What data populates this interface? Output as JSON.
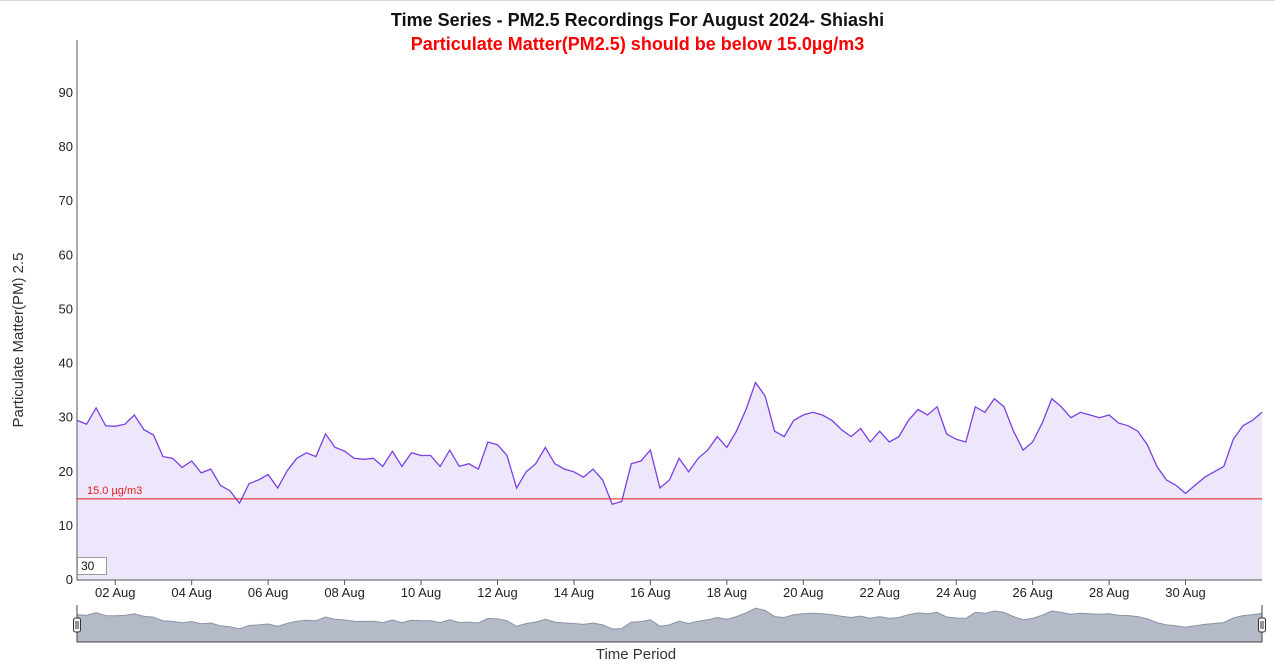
{
  "title": "Time Series - PM2.5 Recordings For August 2024- Shiashi",
  "subtitle": "Particulate Matter(PM2.5) should be below 15.0µg/m3",
  "smoothing_value": "30",
  "colors": {
    "line": "#7b3fe4",
    "area": "#eee6fb",
    "threshold": "#e31a1c",
    "brush_fill": "#b4bac8",
    "brush_stroke": "#8a93a5"
  },
  "chart_data": {
    "type": "area",
    "ylabel": "Particulate Matter(PM) 2.5",
    "xlabel": "Time Period",
    "ylim": [
      0,
      100
    ],
    "yticks": [
      0,
      10,
      20,
      30,
      40,
      50,
      60,
      70,
      80,
      90
    ],
    "xlim": [
      "2024-08-01",
      "2024-09-01"
    ],
    "xticks": [
      "02 Aug",
      "04 Aug",
      "06 Aug",
      "08 Aug",
      "10 Aug",
      "12 Aug",
      "14 Aug",
      "16 Aug",
      "18 Aug",
      "20 Aug",
      "22 Aug",
      "24 Aug",
      "26 Aug",
      "28 Aug",
      "30 Aug"
    ],
    "threshold": {
      "value": 15.0,
      "label": "15.0 µg/m3"
    },
    "series": [
      {
        "x": [
          "2024-08-01T00:00",
          "2024-08-01T06:00",
          "2024-08-01T12:00",
          "2024-08-01T18:00",
          "2024-08-02T00:00",
          "2024-08-02T06:00",
          "2024-08-02T12:00",
          "2024-08-02T18:00",
          "2024-08-03T00:00",
          "2024-08-03T06:00",
          "2024-08-03T12:00",
          "2024-08-03T18:00",
          "2024-08-04T00:00",
          "2024-08-04T06:00",
          "2024-08-04T12:00",
          "2024-08-04T18:00",
          "2024-08-05T00:00",
          "2024-08-05T06:00",
          "2024-08-05T12:00",
          "2024-08-05T18:00",
          "2024-08-06T00:00",
          "2024-08-06T06:00",
          "2024-08-06T12:00",
          "2024-08-06T18:00",
          "2024-08-07T00:00",
          "2024-08-07T06:00",
          "2024-08-07T12:00",
          "2024-08-07T18:00",
          "2024-08-08T00:00",
          "2024-08-08T06:00",
          "2024-08-08T12:00",
          "2024-08-08T18:00",
          "2024-08-09T00:00",
          "2024-08-09T06:00",
          "2024-08-09T12:00",
          "2024-08-09T18:00",
          "2024-08-10T00:00",
          "2024-08-10T06:00",
          "2024-08-10T12:00",
          "2024-08-10T18:00",
          "2024-08-11T00:00",
          "2024-08-11T06:00",
          "2024-08-11T12:00",
          "2024-08-11T18:00",
          "2024-08-12T00:00",
          "2024-08-12T06:00",
          "2024-08-12T12:00",
          "2024-08-12T18:00",
          "2024-08-13T00:00",
          "2024-08-13T06:00",
          "2024-08-13T12:00",
          "2024-08-13T18:00",
          "2024-08-14T00:00",
          "2024-08-14T06:00",
          "2024-08-14T12:00",
          "2024-08-14T18:00",
          "2024-08-15T00:00",
          "2024-08-15T06:00",
          "2024-08-15T12:00",
          "2024-08-15T18:00",
          "2024-08-16T00:00",
          "2024-08-16T06:00",
          "2024-08-16T12:00",
          "2024-08-16T18:00",
          "2024-08-17T00:00",
          "2024-08-17T06:00",
          "2024-08-17T12:00",
          "2024-08-17T18:00",
          "2024-08-18T00:00",
          "2024-08-18T06:00",
          "2024-08-18T12:00",
          "2024-08-18T18:00",
          "2024-08-19T00:00",
          "2024-08-19T06:00",
          "2024-08-19T12:00",
          "2024-08-19T18:00",
          "2024-08-20T00:00",
          "2024-08-20T06:00",
          "2024-08-20T12:00",
          "2024-08-20T18:00",
          "2024-08-21T00:00",
          "2024-08-21T06:00",
          "2024-08-21T12:00",
          "2024-08-21T18:00",
          "2024-08-22T00:00",
          "2024-08-22T06:00",
          "2024-08-22T12:00",
          "2024-08-22T18:00",
          "2024-08-23T00:00",
          "2024-08-23T06:00",
          "2024-08-23T12:00",
          "2024-08-23T18:00",
          "2024-08-24T00:00",
          "2024-08-24T06:00",
          "2024-08-24T12:00",
          "2024-08-24T18:00",
          "2024-08-25T00:00",
          "2024-08-25T06:00",
          "2024-08-25T12:00",
          "2024-08-25T18:00",
          "2024-08-26T00:00",
          "2024-08-26T06:00",
          "2024-08-26T12:00",
          "2024-08-26T18:00",
          "2024-08-27T00:00",
          "2024-08-27T06:00",
          "2024-08-27T12:00",
          "2024-08-27T18:00",
          "2024-08-28T00:00",
          "2024-08-28T06:00",
          "2024-08-28T12:00",
          "2024-08-28T18:00",
          "2024-08-29T00:00",
          "2024-08-29T06:00",
          "2024-08-29T12:00",
          "2024-08-29T18:00",
          "2024-08-30T00:00",
          "2024-08-30T06:00",
          "2024-08-30T12:00",
          "2024-08-30T18:00",
          "2024-08-31T00:00",
          "2024-08-31T06:00",
          "2024-08-31T12:00",
          "2024-08-31T18:00",
          "2024-09-01T00:00"
        ],
        "values": [
          29.5,
          28.8,
          31.8,
          28.5,
          28.4,
          28.8,
          30.5,
          27.8,
          26.8,
          22.8,
          22.5,
          20.8,
          22.0,
          19.8,
          20.5,
          17.5,
          16.5,
          14.2,
          17.8,
          18.5,
          19.5,
          17.0,
          20.2,
          22.5,
          23.5,
          22.8,
          27.0,
          24.5,
          23.8,
          22.5,
          22.3,
          22.5,
          21.0,
          23.8,
          21.0,
          23.5,
          23.0,
          23.0,
          21.0,
          24.0,
          21.0,
          21.5,
          20.5,
          25.5,
          25.0,
          23.0,
          17.0,
          20.0,
          21.5,
          24.5,
          21.5,
          20.5,
          20.0,
          19.0,
          20.5,
          18.5,
          14.0,
          14.5,
          21.5,
          22.0,
          24.0,
          17.0,
          18.5,
          22.5,
          20.0,
          22.5,
          24.0,
          26.5,
          24.5,
          27.5,
          31.5,
          36.5,
          34.0,
          27.5,
          26.5,
          29.5,
          30.5,
          31.0,
          30.5,
          29.5,
          27.8,
          26.5,
          28.0,
          25.5,
          27.5,
          25.5,
          26.5,
          29.5,
          31.5,
          30.5,
          32.0,
          27.0,
          26.0,
          25.5,
          32.0,
          31.0,
          33.5,
          32.0,
          27.5,
          24.0,
          25.5,
          29.0,
          33.5,
          32.0,
          30.0,
          31.0,
          30.5,
          30.0,
          30.5,
          29.0,
          28.5,
          27.5,
          25.0,
          21.0,
          18.5,
          17.5,
          16.0,
          17.5,
          19.0,
          20.0,
          21.0,
          26.0,
          28.5,
          29.5,
          31.0
        ]
      }
    ],
    "brush_range": [
      "2024-08-01",
      "2024-09-01"
    ]
  }
}
